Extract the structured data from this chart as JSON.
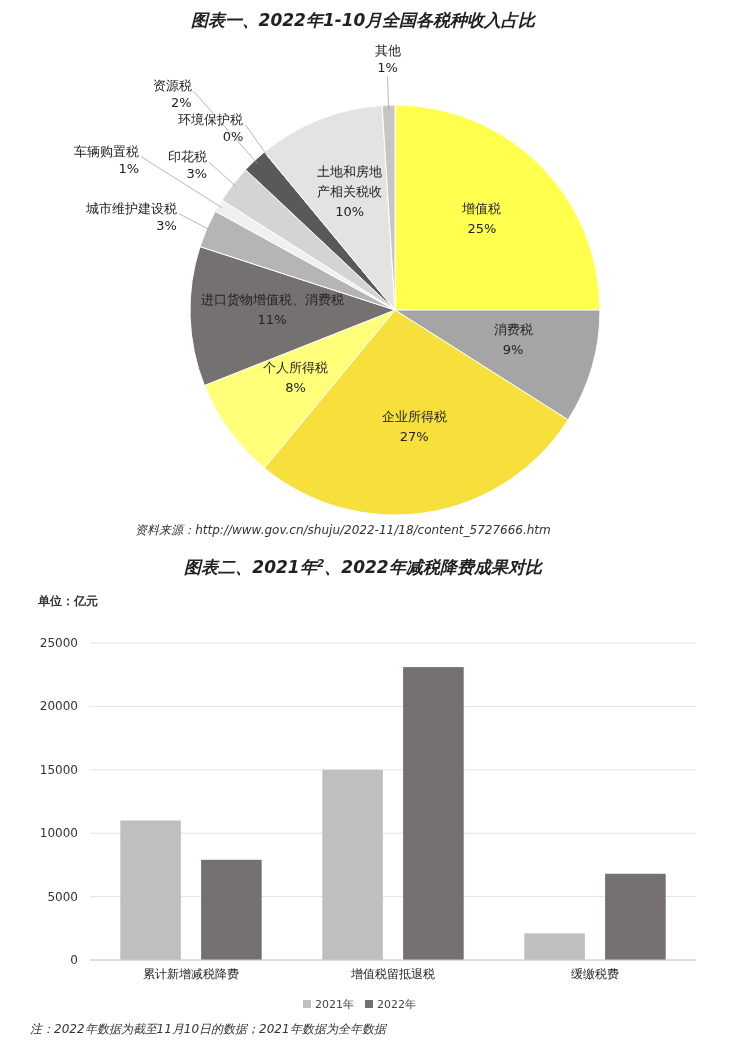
{
  "chart_data": [
    {
      "type": "pie",
      "title": "图表一、2022年1-10月全国各税种收入占比",
      "categories": [
        "增值税",
        "消费税",
        "企业所得税",
        "个人所得税",
        "进口货物增值税、消费税",
        "城市维护建设税",
        "车辆购置税",
        "印花税",
        "资源税",
        "环境保护税",
        "土地和房地产相关税收",
        "其他"
      ],
      "values": [
        25,
        9,
        27,
        8,
        11,
        3,
        1,
        3,
        2,
        0,
        10,
        1
      ],
      "colors": [
        "#ffff4d",
        "#a5a5a5",
        "#f7e03c",
        "#ffff7a",
        "#767171",
        "#b5b5b5",
        "#f0f0f0",
        "#d4d4d4",
        "#595959",
        null,
        "#e3e3e3",
        "#c6c6c6"
      ],
      "value_labels": [
        "25%",
        "9%",
        "27%",
        "8%",
        "11%",
        "3%",
        "1%",
        "3%",
        "2%",
        "0%",
        "10%",
        "1%"
      ],
      "annotations": [
        "资料来源：http://www.gov.cn/shuju/2022-11/18/content_5727666.htm"
      ]
    },
    {
      "type": "bar",
      "title": "图表二、2021年$^{2}$、2022年减税降费成果对比",
      "ylabel": "单位：亿元",
      "categories": [
        "累计新增减税降费",
        "增值税留抵退税",
        "缓缴税费"
      ],
      "series": [
        {
          "name": "2021年",
          "color": "#bfbfbf",
          "values": [
            11000,
            15000,
            2100
          ]
        },
        {
          "name": "2022年",
          "color": "#767171",
          "values": [
            7900,
            23100,
            6800
          ]
        }
      ],
      "ylim": [
        0,
        25000
      ],
      "yticks": [
        0,
        5000,
        10000,
        15000,
        20000,
        25000
      ],
      "grid": "y",
      "legend": "bottom",
      "annotations": [
        "注：2022年数据为截至11月10日的数据；2021年数据为全年数据"
      ]
    }
  ]
}
